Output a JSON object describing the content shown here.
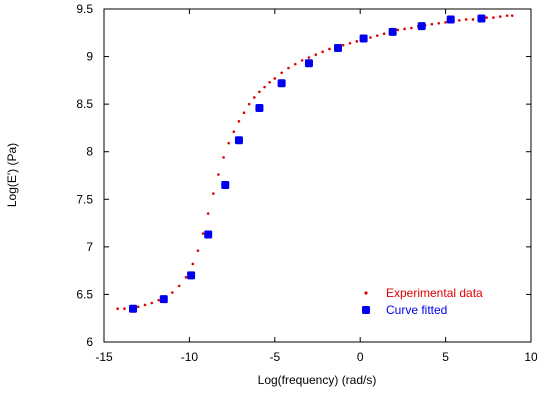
{
  "chart_data": {
    "type": "scatter",
    "xlabel": "Log(frequency) (rad/s)",
    "ylabel": "Log(E') (Pa)",
    "xlim": [
      -15,
      10
    ],
    "ylim": [
      6,
      9.5
    ],
    "xticks": [
      -15,
      -10,
      -5,
      0,
      5,
      10
    ],
    "yticks": [
      6,
      6.5,
      7,
      7.5,
      8,
      8.5,
      9,
      9.5
    ],
    "xtick_labels": [
      "-15",
      "-10",
      "-5",
      "0",
      "5",
      "10"
    ],
    "ytick_labels": [
      "6",
      "6.5",
      "7",
      "7.5",
      "8",
      "8.5",
      "9",
      "9.5"
    ],
    "grid": false,
    "legend_position": "bottom-right",
    "series": [
      {
        "name": "Experimental data",
        "marker": "small-dot",
        "color": "#e00000",
        "x": [
          -14.2,
          -13.8,
          -13.4,
          -13.0,
          -12.6,
          -12.2,
          -11.8,
          -11.4,
          -11.0,
          -10.6,
          -10.2,
          -9.8,
          -9.5,
          -9.2,
          -8.9,
          -8.6,
          -8.3,
          -8.0,
          -7.7,
          -7.4,
          -7.1,
          -6.8,
          -6.5,
          -6.2,
          -5.9,
          -5.6,
          -5.3,
          -5.0,
          -4.6,
          -4.2,
          -3.8,
          -3.4,
          -3.0,
          -2.6,
          -2.2,
          -1.8,
          -1.4,
          -1.0,
          -0.6,
          -0.2,
          0.2,
          0.6,
          1.0,
          1.4,
          1.8,
          2.2,
          2.6,
          3.0,
          3.4,
          3.8,
          4.2,
          4.6,
          5.0,
          5.4,
          5.8,
          6.2,
          6.6,
          7.0,
          7.4,
          7.8,
          8.2,
          8.6,
          8.9
        ],
        "y": [
          6.35,
          6.35,
          6.36,
          6.37,
          6.39,
          6.41,
          6.44,
          6.47,
          6.52,
          6.59,
          6.68,
          6.82,
          6.96,
          7.14,
          7.35,
          7.56,
          7.76,
          7.94,
          8.09,
          8.21,
          8.32,
          8.41,
          8.5,
          8.57,
          8.63,
          8.68,
          8.73,
          8.77,
          8.83,
          8.88,
          8.92,
          8.96,
          8.99,
          9.02,
          9.05,
          9.08,
          9.1,
          9.12,
          9.14,
          9.16,
          9.18,
          9.2,
          9.22,
          9.24,
          9.26,
          9.28,
          9.29,
          9.3,
          9.32,
          9.33,
          9.34,
          9.35,
          9.36,
          9.37,
          9.38,
          9.39,
          9.39,
          9.4,
          9.41,
          9.41,
          9.42,
          9.43,
          9.43
        ]
      },
      {
        "name": "Curve fitted",
        "marker": "square",
        "color": "#0000ee",
        "x": [
          -13.3,
          -11.5,
          -9.9,
          -8.9,
          -7.9,
          -7.1,
          -5.9,
          -4.6,
          -3.0,
          -1.3,
          0.2,
          1.9,
          3.6,
          5.3,
          7.1
        ],
        "y": [
          6.35,
          6.45,
          6.7,
          7.13,
          7.65,
          8.12,
          8.46,
          8.72,
          8.93,
          9.09,
          9.19,
          9.26,
          9.32,
          9.39,
          9.4
        ]
      }
    ]
  }
}
